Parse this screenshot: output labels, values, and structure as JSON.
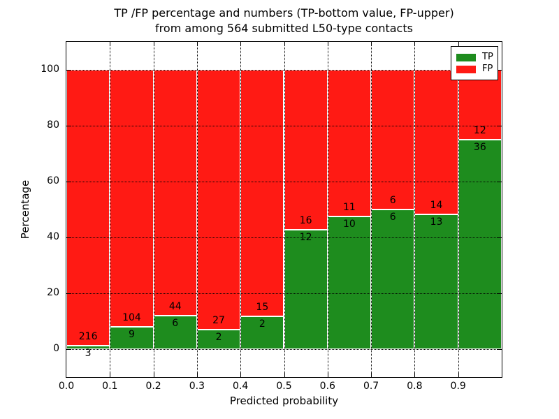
{
  "figure": {
    "title_line1": "TP /FP percentage and numbers (TP-bottom value, FP-upper)",
    "title_line2": "from among 564 submitted L50-type contacts"
  },
  "chart_data": {
    "type": "bar",
    "stacked": true,
    "normalized_to": 100,
    "title": "TP /FP percentage and numbers (TP-bottom value, FP-upper)\nfrom among 564 submitted L50-type contacts",
    "xlabel": "Predicted probability",
    "ylabel": "Percentage",
    "total_contacts": 564,
    "categories": [
      "0.0-0.1",
      "0.1-0.2",
      "0.2-0.3",
      "0.3-0.4",
      "0.4-0.5",
      "0.5-0.6",
      "0.6-0.7",
      "0.7-0.8",
      "0.8-0.9",
      "0.9-1.0"
    ],
    "bin_starts": [
      0.0,
      0.1,
      0.2,
      0.3,
      0.4,
      0.5,
      0.6,
      0.7,
      0.8,
      0.9
    ],
    "bin_width": 0.1,
    "series": [
      {
        "name": "TP",
        "color": "#1e8c1e",
        "counts": [
          3,
          9,
          6,
          2,
          2,
          12,
          10,
          6,
          13,
          36
        ]
      },
      {
        "name": "FP",
        "color": "#ff1a14",
        "counts": [
          216,
          104,
          44,
          27,
          15,
          16,
          11,
          6,
          14,
          12
        ]
      }
    ],
    "tp_percent": [
      1.4,
      8.0,
      12.0,
      6.9,
      11.8,
      42.9,
      47.6,
      50.0,
      48.1,
      75.0
    ],
    "x_tick_labels": [
      "0.0",
      "0.1",
      "0.2",
      "0.3",
      "0.4",
      "0.5",
      "0.6",
      "0.7",
      "0.8",
      "0.9"
    ],
    "y_tick_values": [
      0,
      20,
      40,
      60,
      80,
      100
    ],
    "xlim": [
      0.0,
      1.0
    ],
    "ylim": [
      -10,
      110
    ],
    "grid": "dotted",
    "legend": {
      "position": "upper right",
      "entries": [
        "TP",
        "FP"
      ]
    }
  },
  "colors": {
    "tp_green": "#1e8c1e",
    "fp_red": "#ff1a14",
    "axis": "#000000",
    "background": "#ffffff",
    "bar_edge": "#ffffff"
  }
}
